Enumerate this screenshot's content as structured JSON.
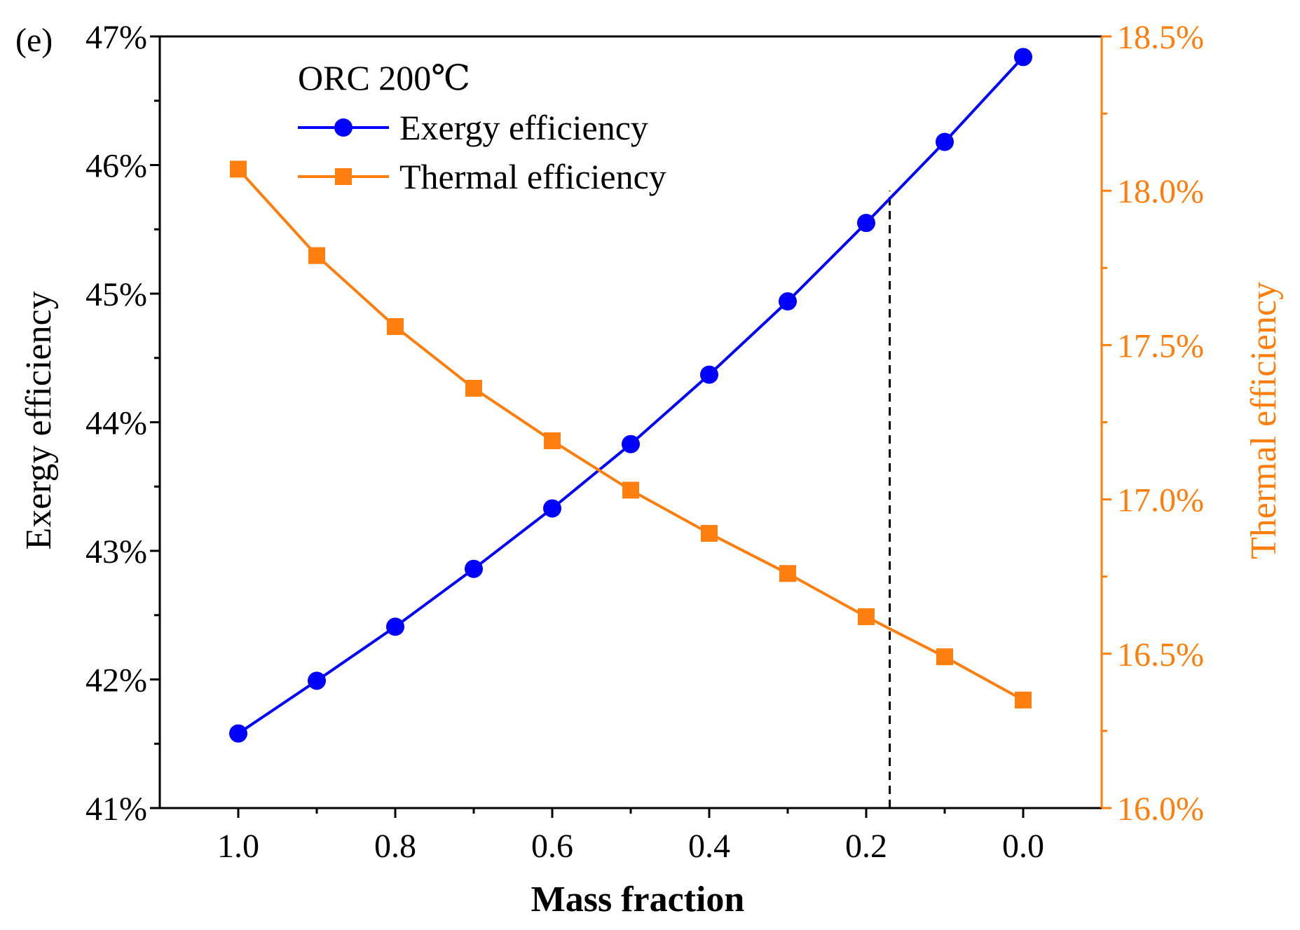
{
  "chart_data": {
    "type": "line",
    "panel_label": "(e)",
    "xlabel": "Mass fraction",
    "ylabel": "Exergy efficiency",
    "y2label": "Thermal efficiency",
    "x_reversed": true,
    "xlim": [
      1.1,
      -0.1
    ],
    "ylim": [
      41,
      47
    ],
    "y2lim": [
      16.0,
      18.5
    ],
    "x_ticks": [
      1.0,
      0.8,
      0.6,
      0.4,
      0.2,
      0.0
    ],
    "x_tick_labels": [
      "1.0",
      "0.8",
      "0.6",
      "0.4",
      "0.2",
      "0.0"
    ],
    "y_ticks": [
      41,
      42,
      43,
      44,
      45,
      46,
      47
    ],
    "y_tick_labels": [
      "41%",
      "42%",
      "43%",
      "44%",
      "45%",
      "46%",
      "47%"
    ],
    "y2_ticks": [
      16.0,
      16.5,
      17.0,
      17.5,
      18.0,
      18.5
    ],
    "y2_tick_labels": [
      "16.0%",
      "16.5%",
      "17.0%",
      "17.5%",
      "18.0%",
      "18.5%"
    ],
    "legend_title": "ORC 200℃",
    "legend_position": "top-left",
    "x": [
      1.0,
      0.9,
      0.8,
      0.7,
      0.6,
      0.5,
      0.4,
      0.3,
      0.2,
      0.1,
      0.0
    ],
    "series": [
      {
        "name": "Exergy efficiency",
        "axis": "left",
        "color": "#0000ff",
        "marker": "circle",
        "values": [
          41.58,
          41.99,
          42.41,
          42.86,
          43.33,
          43.83,
          44.37,
          44.94,
          45.55,
          46.18,
          46.84
        ]
      },
      {
        "name": "Thermal efficiency",
        "axis": "right",
        "color": "#ff7f0e",
        "marker": "square",
        "values": [
          18.07,
          17.79,
          17.56,
          17.36,
          17.19,
          17.03,
          16.89,
          16.76,
          16.62,
          16.49,
          16.35
        ]
      }
    ],
    "reference_line": {
      "x": 0.17,
      "y_top": 45.8,
      "style": "dashed",
      "color": "#000000"
    },
    "grid": false
  }
}
